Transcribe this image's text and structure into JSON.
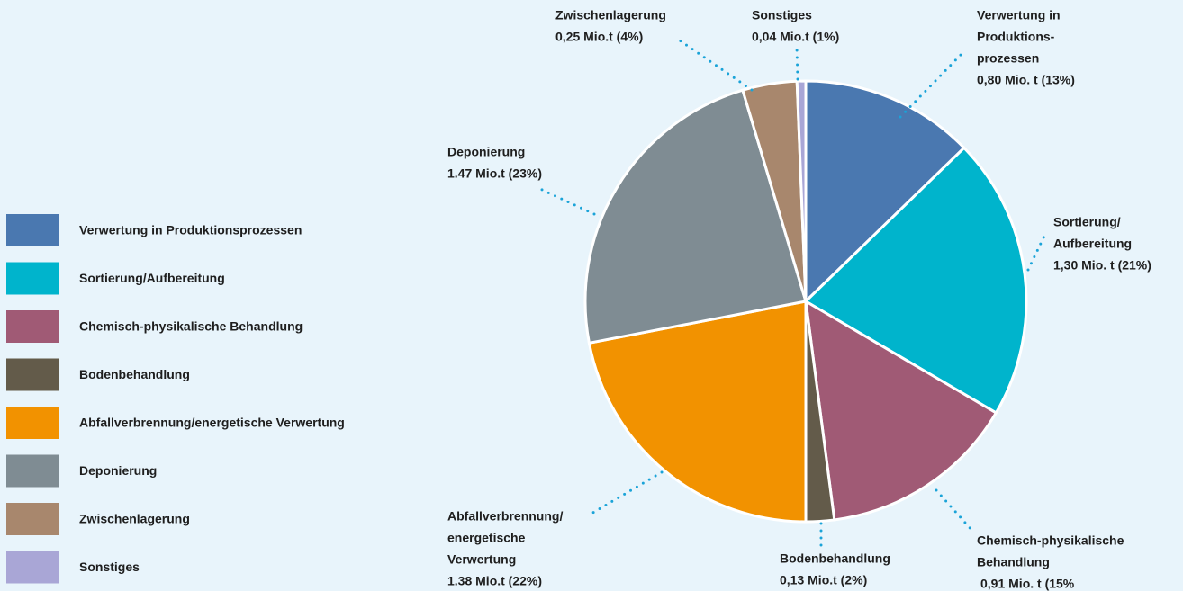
{
  "chart_data": {
    "type": "pie",
    "categories": [
      "Verwertung in Produktionsprozessen",
      "Sortierung/Aufbereitung",
      "Chemisch-physikalische Behandlung",
      "Bodenbehandlung",
      "Abfallverbrennung/energetische Verwertung",
      "Deponierung",
      "Zwischenlagerung",
      "Sonstiges"
    ],
    "values": [
      0.8,
      1.3,
      0.91,
      0.13,
      1.38,
      1.47,
      0.25,
      0.04
    ],
    "value_labels": [
      "0,80 Mio. t (13%)",
      "1,30 Mio. t (21%)",
      "0,91 Mio. t (15%",
      "0,13 Mio.t (2%)",
      "1.38 Mio.t (22%)",
      "1.47 Mio.t (23%)",
      "0,25 Mio.t (4%)",
      "0,04 Mio.t (1%)"
    ],
    "callout_labels": [
      [
        "Verwertung in",
        "Produktions-",
        "prozessen"
      ],
      [
        "Sortierung/",
        "Aufbereitung"
      ],
      [
        "Chemisch-physikalische",
        "Behandlung"
      ],
      [
        "Bodenbehandlung"
      ],
      [
        "Abfallverbrennung/",
        "energetische",
        "Verwertung"
      ],
      [
        "Deponierung"
      ],
      [
        "Zwischenlagerung"
      ],
      [
        "Sonstiges"
      ]
    ],
    "colors": [
      "#4a78b0",
      "#00b4cc",
      "#a05a75",
      "#635b4a",
      "#f29200",
      "#7f8c93",
      "#a8876d",
      "#a9a6d6"
    ],
    "legend": "left"
  }
}
